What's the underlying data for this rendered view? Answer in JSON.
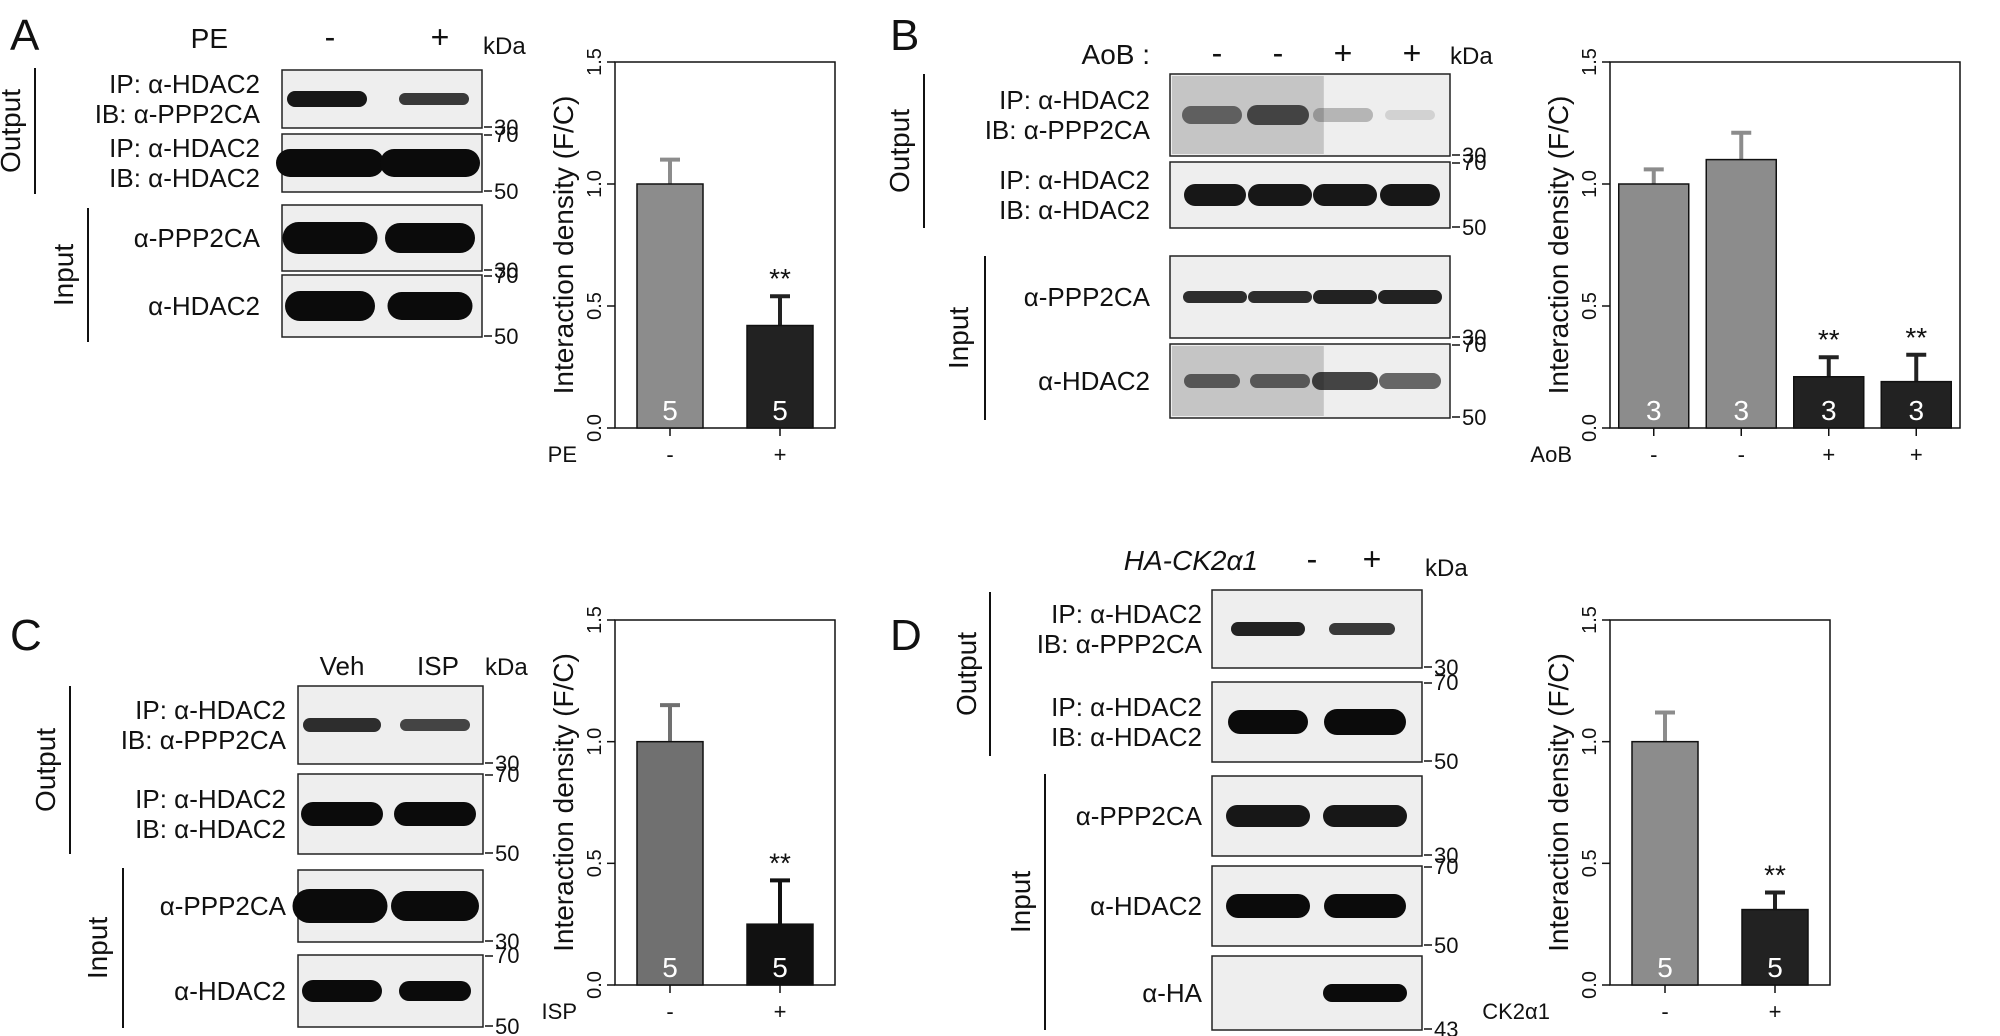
{
  "panels": [
    {
      "letter": "A",
      "lanes": [
        "-",
        "+"
      ],
      "treatment_label": "PE",
      "kda_label": "kDa",
      "output_label": "Output",
      "input_label": "Input",
      "blots": [
        {
          "lines": [
            "IP: α-HDAC2",
            "IB: α-PPP2CA"
          ],
          "marker_bottom": "30",
          "marker_top": ""
        },
        {
          "lines": [
            "IP: α-HDAC2",
            "IB: α-HDAC2"
          ],
          "marker_bottom": "50",
          "marker_top": "70"
        },
        {
          "lines": [
            "α-PPP2CA"
          ],
          "marker_bottom": "30",
          "marker_top": ""
        },
        {
          "lines": [
            "α-HDAC2"
          ],
          "marker_bottom": "50",
          "marker_top": "70"
        }
      ],
      "chart": {
        "ylabel": "Interaction density (F/C)",
        "yticks": [
          "0.0",
          "0.5",
          "1.0",
          "1.5"
        ],
        "xlabel": "PE",
        "xticks": [
          "-",
          "+"
        ]
      }
    },
    {
      "letter": "B",
      "lanes": [
        "-",
        "-",
        "+",
        "+"
      ],
      "treatment_label": "AoB :",
      "kda_label": "kDa",
      "output_label": "Output",
      "input_label": "Input",
      "blots": [
        {
          "lines": [
            "IP: α-HDAC2",
            "IB: α-PPP2CA"
          ],
          "marker_bottom": "30",
          "marker_top": ""
        },
        {
          "lines": [
            "IP: α-HDAC2",
            "IB: α-HDAC2"
          ],
          "marker_bottom": "50",
          "marker_top": "70"
        },
        {
          "lines": [
            "α-PPP2CA"
          ],
          "marker_bottom": "30",
          "marker_top": ""
        },
        {
          "lines": [
            "α-HDAC2"
          ],
          "marker_bottom": "50",
          "marker_top": "70"
        }
      ],
      "chart": {
        "ylabel": "Interaction density (F/C)",
        "yticks": [
          "0.0",
          "0.5",
          "1.0",
          "1.5"
        ],
        "xlabel": "AoB",
        "xticks": [
          "-",
          "-",
          "+",
          "+"
        ]
      }
    },
    {
      "letter": "C",
      "lanes": [
        "Veh",
        "ISP"
      ],
      "treatment_label": "",
      "kda_label": "kDa",
      "output_label": "Output",
      "input_label": "Input",
      "blots": [
        {
          "lines": [
            "IP: α-HDAC2",
            "IB: α-PPP2CA"
          ],
          "marker_bottom": "30",
          "marker_top": ""
        },
        {
          "lines": [
            "IP: α-HDAC2",
            "IB: α-HDAC2"
          ],
          "marker_bottom": "50",
          "marker_top": "70"
        },
        {
          "lines": [
            "α-PPP2CA"
          ],
          "marker_bottom": "30",
          "marker_top": ""
        },
        {
          "lines": [
            "α-HDAC2"
          ],
          "marker_bottom": "50",
          "marker_top": "70"
        }
      ],
      "chart": {
        "ylabel": "Interaction density (F/C)",
        "yticks": [
          "0.0",
          "0.5",
          "1.0",
          "1.5"
        ],
        "xlabel": "ISP",
        "xticks": [
          "-",
          "+"
        ]
      }
    },
    {
      "letter": "D",
      "lanes": [
        "-",
        "+"
      ],
      "treatment_label": "HA-CK2α1",
      "kda_label": "kDa",
      "output_label": "Output",
      "input_label": "Input",
      "blots": [
        {
          "lines": [
            "IP: α-HDAC2",
            "IB: α-PPP2CA"
          ],
          "marker_bottom": "30",
          "marker_top": ""
        },
        {
          "lines": [
            "IP: α-HDAC2",
            "IB: α-HDAC2"
          ],
          "marker_bottom": "50",
          "marker_top": "70"
        },
        {
          "lines": [
            "α-PPP2CA"
          ],
          "marker_bottom": "30",
          "marker_top": ""
        },
        {
          "lines": [
            "α-HDAC2"
          ],
          "marker_bottom": "50",
          "marker_top": "70"
        },
        {
          "lines": [
            "α-HA"
          ],
          "marker_bottom": "43",
          "marker_top": ""
        }
      ],
      "chart": {
        "ylabel": "Interaction density (F/C)",
        "yticks": [
          "0.0",
          "0.5",
          "1.0",
          "1.5"
        ],
        "xlabel": "CK2α1",
        "xticks": [
          "-",
          "+"
        ]
      }
    }
  ],
  "chart_data": [
    {
      "type": "bar",
      "panel": "A",
      "categories": [
        "-",
        "+"
      ],
      "values": [
        1.0,
        0.42
      ],
      "errors": [
        0.1,
        0.12
      ],
      "n": [
        "5",
        "5"
      ],
      "significance": [
        "",
        "**"
      ],
      "bar_colors": [
        "#8c8c8c",
        "#222222"
      ],
      "title": "",
      "xlabel": "PE",
      "ylabel": "Interaction density (F/C)",
      "ylim": [
        0,
        1.5
      ],
      "grid": false
    },
    {
      "type": "bar",
      "panel": "B",
      "categories": [
        "-",
        "-",
        "+",
        "+"
      ],
      "values": [
        1.0,
        1.1,
        0.21,
        0.19
      ],
      "errors": [
        0.06,
        0.11,
        0.08,
        0.11
      ],
      "n": [
        "3",
        "3",
        "3",
        "3"
      ],
      "significance": [
        "",
        "",
        "**",
        "**"
      ],
      "bar_colors": [
        "#8c8c8c",
        "#8c8c8c",
        "#222222",
        "#222222"
      ],
      "title": "",
      "xlabel": "AoB",
      "ylabel": "Interaction density (F/C)",
      "ylim": [
        0,
        1.5
      ],
      "grid": false
    },
    {
      "type": "bar",
      "panel": "C",
      "categories": [
        "-",
        "+"
      ],
      "values": [
        1.0,
        0.25
      ],
      "errors": [
        0.15,
        0.18
      ],
      "n": [
        "5",
        "5"
      ],
      "significance": [
        "",
        "**"
      ],
      "bar_colors": [
        "#707070",
        "#111111"
      ],
      "title": "",
      "xlabel": "ISP",
      "ylabel": "Interaction density (F/C)",
      "ylim": [
        0,
        1.5
      ],
      "grid": false
    },
    {
      "type": "bar",
      "panel": "D",
      "categories": [
        "-",
        "+"
      ],
      "values": [
        1.0,
        0.31
      ],
      "errors": [
        0.12,
        0.07
      ],
      "n": [
        "5",
        "5"
      ],
      "significance": [
        "",
        "**"
      ],
      "bar_colors": [
        "#8c8c8c",
        "#222222"
      ],
      "title": "",
      "xlabel": "CK2α1",
      "ylabel": "Interaction density (F/C)",
      "ylim": [
        0,
        1.5
      ],
      "grid": false
    }
  ]
}
